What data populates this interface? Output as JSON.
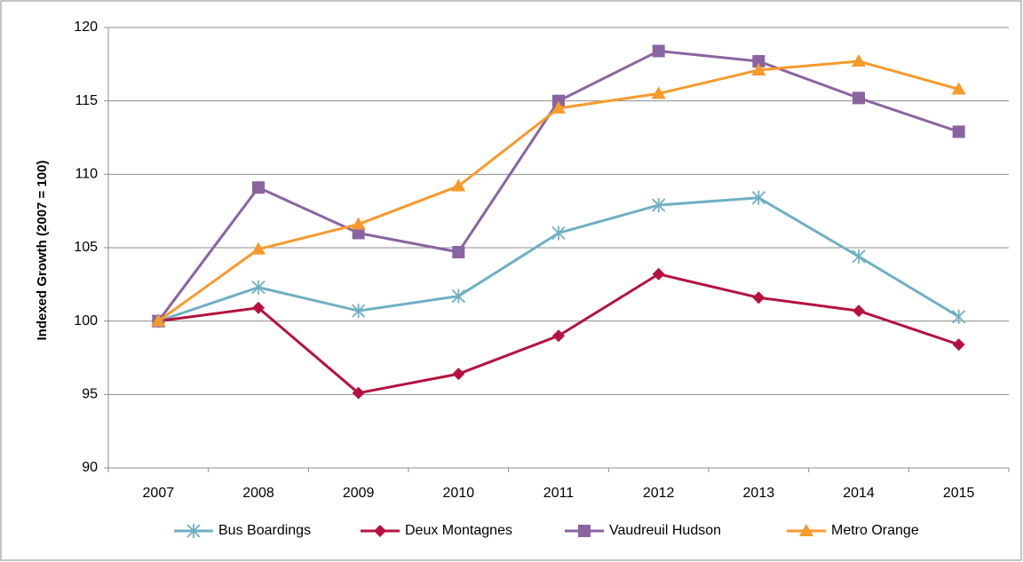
{
  "chart_data": {
    "type": "line",
    "ylabel": "Indexed Growth (2007 = 100)",
    "categories": [
      "2007",
      "2008",
      "2009",
      "2010",
      "2011",
      "2012",
      "2013",
      "2014",
      "2015"
    ],
    "series": [
      {
        "name": "Bus Boardings",
        "color": "#6fb0c4",
        "marker": "asterisk",
        "values": [
          100,
          102.3,
          100.7,
          101.7,
          106,
          107.9,
          108.4,
          104.4,
          100.3
        ]
      },
      {
        "name": "Deux Montagnes",
        "color": "#b5123f",
        "marker": "diamond",
        "values": [
          100,
          100.9,
          95.1,
          96.4,
          99,
          103.2,
          101.6,
          100.7,
          98.4
        ]
      },
      {
        "name": "Vaudreuil Hudson",
        "color": "#8a64a0",
        "marker": "square",
        "values": [
          100,
          109.1,
          106,
          104.7,
          115,
          118.4,
          117.7,
          115.2,
          112.9
        ]
      },
      {
        "name": "Metro Orange",
        "color": "#f79a2c",
        "marker": "triangle",
        "values": [
          100,
          104.9,
          106.6,
          109.2,
          114.5,
          115.5,
          117.1,
          117.7,
          115.8
        ]
      }
    ],
    "ylim": [
      90,
      120
    ],
    "yticks": [
      90,
      95,
      100,
      105,
      110,
      115,
      120
    ],
    "grid": true,
    "legend": "bottom"
  }
}
